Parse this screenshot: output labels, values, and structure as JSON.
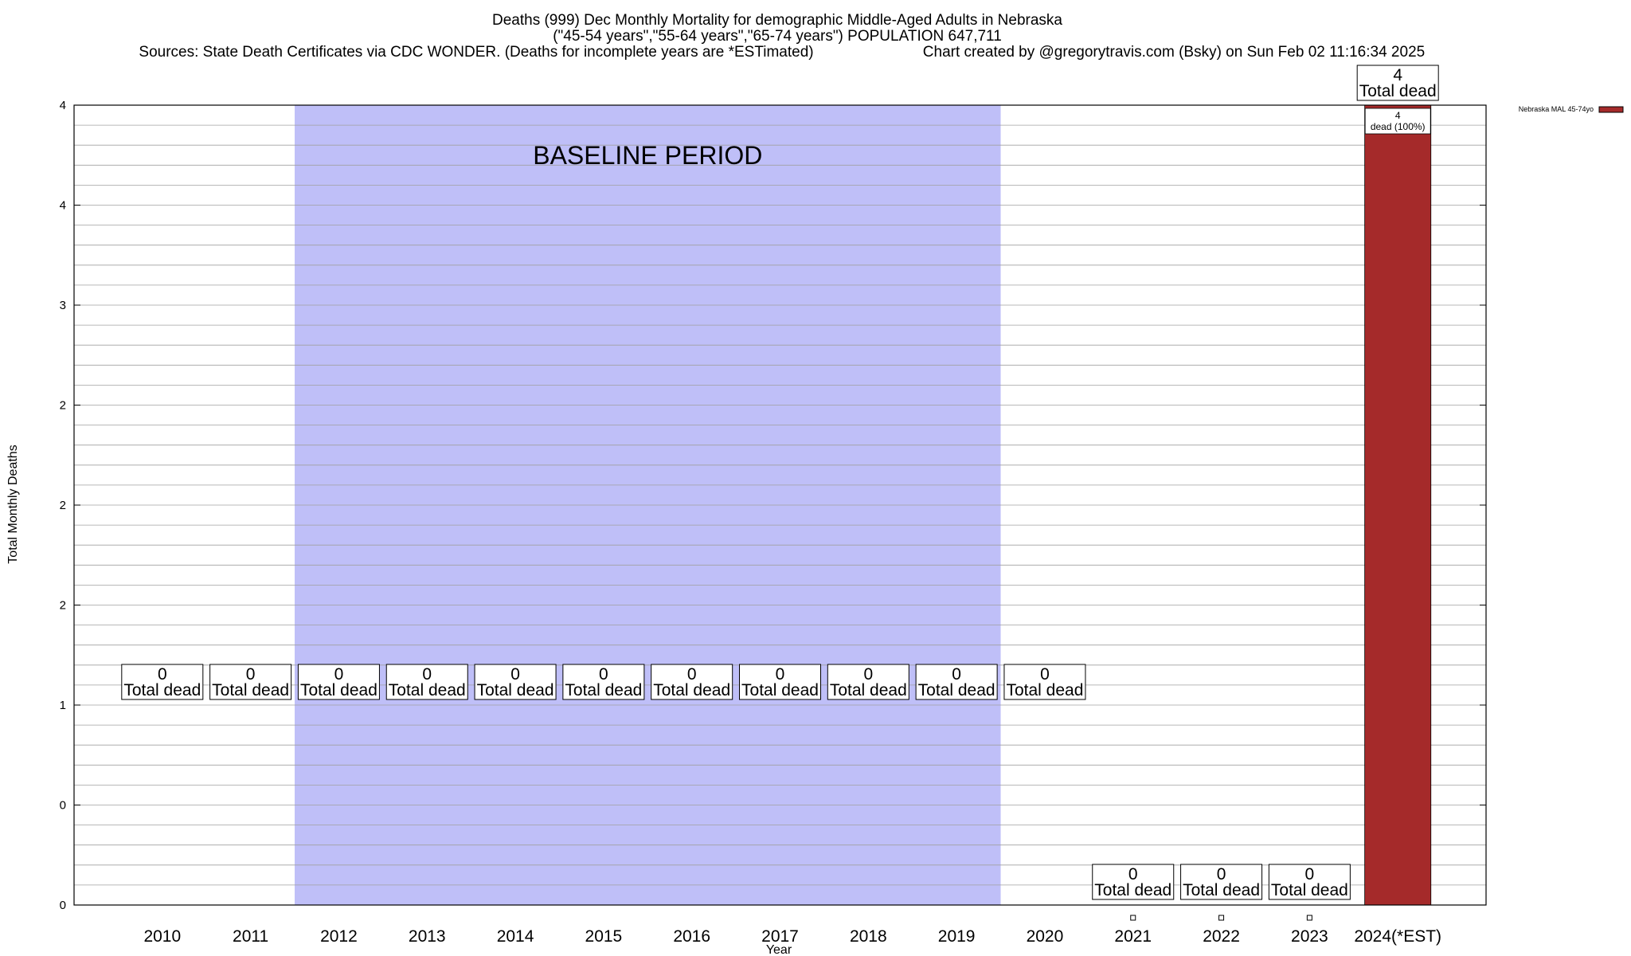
{
  "colors": {
    "bar": "#a52a2a",
    "baseline_band": "#bfbff8",
    "gridline": "#a0a0a0",
    "label_border": "#000000",
    "background": "#ffffff"
  },
  "header": {
    "line1": "Deaths (999) Dec Monthly Mortality for demographic Middle-Aged Adults in Nebraska",
    "line2": "(\"45-54 years\",\"55-64 years\",\"65-74 years\") POPULATION 647,711",
    "sources": "Sources: State Death Certificates via CDC WONDER. (Deaths for incomplete years are *ESTimated)",
    "credit": "Chart created by @gregorytravis.com (Bsky) on Sun Feb 02 11:16:34 2025"
  },
  "chart_data": {
    "type": "bar",
    "title": "Deaths (999) Dec Monthly Mortality for demographic Middle-Aged Adults in Nebraska",
    "xlabel": "Year",
    "ylabel": "Total Monthly Deaths",
    "ylim": [
      0,
      4
    ],
    "y_tick_labels": [
      "0",
      "0",
      "1",
      "2",
      "2",
      "2",
      "3",
      "4",
      "4"
    ],
    "grid": true,
    "legend_position": "top-right",
    "categories": [
      "2010",
      "2011",
      "2012",
      "2013",
      "2014",
      "2015",
      "2016",
      "2017",
      "2018",
      "2019",
      "2020",
      "2021",
      "2022",
      "2023",
      "2024(*EST)"
    ],
    "series": [
      {
        "name": "Nebraska MAL 45-74yo",
        "values": [
          0,
          0,
          0,
          0,
          0,
          0,
          0,
          0,
          0,
          0,
          0,
          0,
          0,
          0,
          4
        ]
      }
    ],
    "total_labels": [
      {
        "value": "0",
        "text": "Total dead"
      },
      {
        "value": "0",
        "text": "Total dead"
      },
      {
        "value": "0",
        "text": "Total dead"
      },
      {
        "value": "0",
        "text": "Total dead"
      },
      {
        "value": "0",
        "text": "Total dead"
      },
      {
        "value": "0",
        "text": "Total dead"
      },
      {
        "value": "0",
        "text": "Total dead"
      },
      {
        "value": "0",
        "text": "Total dead"
      },
      {
        "value": "0",
        "text": "Total dead"
      },
      {
        "value": "0",
        "text": "Total dead"
      },
      {
        "value": "0",
        "text": "Total dead"
      },
      {
        "value": "0",
        "text": "Total dead"
      },
      {
        "value": "0",
        "text": "Total dead"
      },
      {
        "value": "0",
        "text": "Total dead"
      },
      {
        "value": "4",
        "text": "Total dead"
      }
    ],
    "bar_inner_label": {
      "value": "4",
      "text": "dead (100%)"
    },
    "baseline_period": {
      "label": "BASELINE PERIOD",
      "from": "2012",
      "to": "2019"
    }
  }
}
